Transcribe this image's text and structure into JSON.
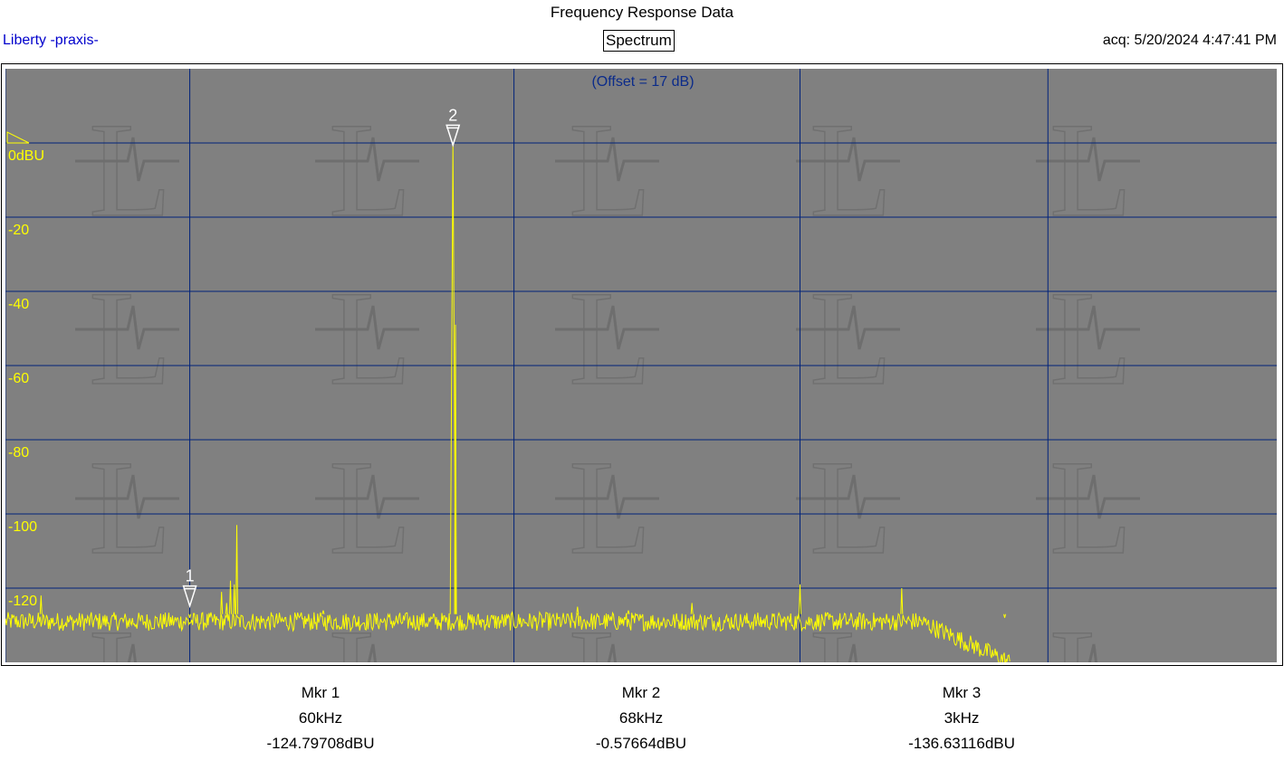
{
  "header": {
    "title": "Frequency Response Data",
    "brand": "Liberty -praxis-",
    "mode_button": "Spectrum",
    "acquired": "acq: 5/20/2024 4:47:41 PM"
  },
  "colors": {
    "plot_background": "#808080",
    "grid": "#00227a",
    "trace": "#ffff00",
    "axis_labels": "#ffff00",
    "offset_text": "#0b2b8a",
    "brand_text": "#0000cc"
  },
  "chart_data": {
    "type": "line",
    "title": "Frequency Response Data",
    "offset_label": "(Offset = 17 dB)",
    "reference_label": "0dBU",
    "y_unit": "dBU",
    "y_ticks": [
      {
        "value": -20,
        "label": "-20"
      },
      {
        "value": -40,
        "label": "-40"
      },
      {
        "value": -60,
        "label": "-60"
      },
      {
        "value": -80,
        "label": "-80"
      },
      {
        "value": -100,
        "label": "-100"
      },
      {
        "value": -120,
        "label": "-120"
      }
    ],
    "ylim": [
      -140,
      20
    ],
    "xlim": [
      0,
      1
    ],
    "vertical_gridlines_x": [
      0.0,
      0.145,
      0.4,
      0.625,
      0.82
    ],
    "grid": true,
    "noise_floor_dbu": -129,
    "rolloff_start_x": 0.72,
    "rolloff_end_x": 0.79,
    "rolloff_end_dbu": -140,
    "peaks": [
      {
        "x": 0.028,
        "y": -122
      },
      {
        "x": 0.145,
        "y": -128
      },
      {
        "x": 0.17,
        "y": -121
      },
      {
        "x": 0.174,
        "y": -124
      },
      {
        "x": 0.177,
        "y": -118
      },
      {
        "x": 0.18,
        "y": -119
      },
      {
        "x": 0.182,
        "y": -103
      },
      {
        "x": 0.25,
        "y": -126
      },
      {
        "x": 0.352,
        "y": -0.5
      },
      {
        "x": 0.354,
        "y": -49
      },
      {
        "x": 0.45,
        "y": -125
      },
      {
        "x": 0.49,
        "y": -126
      },
      {
        "x": 0.54,
        "y": -124
      },
      {
        "x": 0.625,
        "y": -119
      },
      {
        "x": 0.705,
        "y": -120
      },
      {
        "x": 0.786,
        "y": -128
      }
    ],
    "markers_on_plot": [
      {
        "label": "1",
        "x": 0.145,
        "y": -124.8
      },
      {
        "label": "2",
        "x": 0.352,
        "y": -0.58
      }
    ]
  },
  "markers": [
    {
      "name": "Mkr 1",
      "freq": "60kHz",
      "level": "-124.79708dBU"
    },
    {
      "name": "Mkr 2",
      "freq": "68kHz",
      "level": "-0.57664dBU"
    },
    {
      "name": "Mkr 3",
      "freq": "3kHz",
      "level": "-136.63116dBU"
    }
  ]
}
